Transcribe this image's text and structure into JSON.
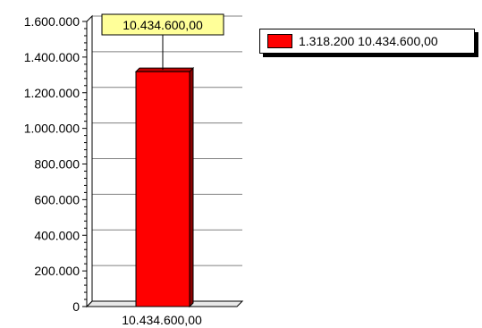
{
  "chart_data": {
    "type": "bar",
    "categories": [
      "10.434.600,00"
    ],
    "series": [
      {
        "name": "1.318.200 10.434.600,00",
        "values": [
          1318200
        ],
        "color": "#ff0000"
      }
    ],
    "ylim": [
      0,
      1600000
    ],
    "yticks": [
      0,
      200000,
      400000,
      600000,
      800000,
      1000000,
      1200000,
      1400000,
      1600000
    ],
    "ytick_labels": [
      "0",
      "200.000",
      "400.000",
      "600.000",
      "800.000",
      "1.000.000",
      "1.200.000",
      "1.400.000",
      "1.600.000"
    ],
    "data_label": "10.434.600,00",
    "grid": true,
    "legend_position": "top-right",
    "title": "",
    "xlabel": "",
    "ylabel": ""
  }
}
